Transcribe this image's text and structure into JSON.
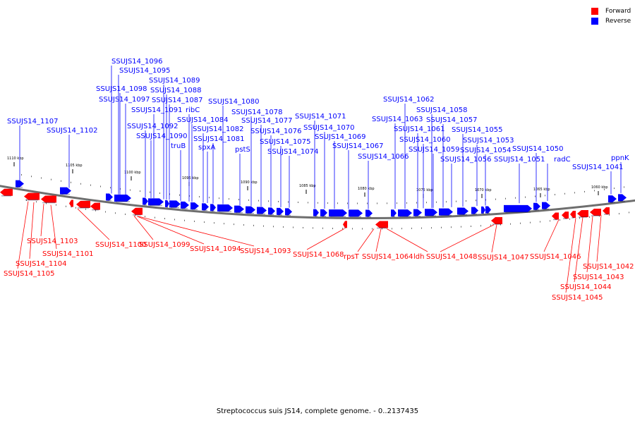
{
  "legend": {
    "forward_label": "Forward",
    "reverse_label": "Reverse",
    "forward_color": "#ff0000",
    "reverse_color": "#0000ff"
  },
  "caption": "Streptococcus suis JS14, complete genome. - 0..2137435",
  "colors": {
    "forward": "#ff0000",
    "reverse": "#0000ff",
    "backbone": "#6e6e6e"
  },
  "scale_ticks": [
    "1110 kbp",
    "1105 kbp",
    "1100 kbp",
    "1095 kbp",
    "1090 kbp",
    "1085 kbp",
    "1080 kbp",
    "1075 kbp",
    "1070 kbp",
    "1065 kbp",
    "1060 kbp"
  ],
  "reverse_labels": [
    "SSUJS14_1107",
    "SSUJS14_1102",
    "SSUJS14_1096",
    "SSUJS14_1095",
    "SSUJS14_1098",
    "SSUJS14_1097",
    "SSUJS14_1089",
    "SSUJS14_1088",
    "SSUJS14_1087",
    "SSUJS14_1091",
    "SSUJS14_1092",
    "SSUJS14_1090",
    "ribC",
    "truB",
    "SSUJS14_1084",
    "SSUJS14_1082",
    "spxA",
    "SSUJS14_1081",
    "SSUJS14_1080",
    "pstS",
    "SSUJS14_1078",
    "SSUJS14_1077",
    "SSUJS14_1076",
    "SSUJS14_1075",
    "SSUJS14_1074",
    "SSUJS14_1071",
    "SSUJS14_1070",
    "SSUJS14_1069",
    "SSUJS14_1067",
    "SSUJS14_1066",
    "SSUJS14_1062",
    "SSUJS14_1063",
    "SSUJS14_1058",
    "SSUJS14_1061",
    "SSUJS14_1057",
    "SSUJS14_1060",
    "SSUJS14_1059",
    "SSUJS14_1055",
    "SSUJS14_1056",
    "SSUJS14_1053",
    "SSUJS14_1054",
    "SSUJS14_1050",
    "SSUJS14_1051",
    "radC",
    "SSUJS14_1041",
    "ppnK"
  ],
  "forward_labels": [
    "SSUJS14_1103",
    "SSUJS14_1101",
    "SSUJS14_1104",
    "SSUJS14_1105",
    "SSUJS14_1100",
    "SSUJS14_1099",
    "SSUJS14_1094",
    "SSUJS14_1093",
    "SSUJS14_1068",
    "rpsT",
    "SSUJS14_1064",
    "ldh",
    "SSUJS14_1048",
    "SSUJS14_1047",
    "SSUJS14_1046",
    "SSUJS14_1042",
    "SSUJS14_1043",
    "SSUJS14_1044",
    "SSUJS14_1045"
  ]
}
